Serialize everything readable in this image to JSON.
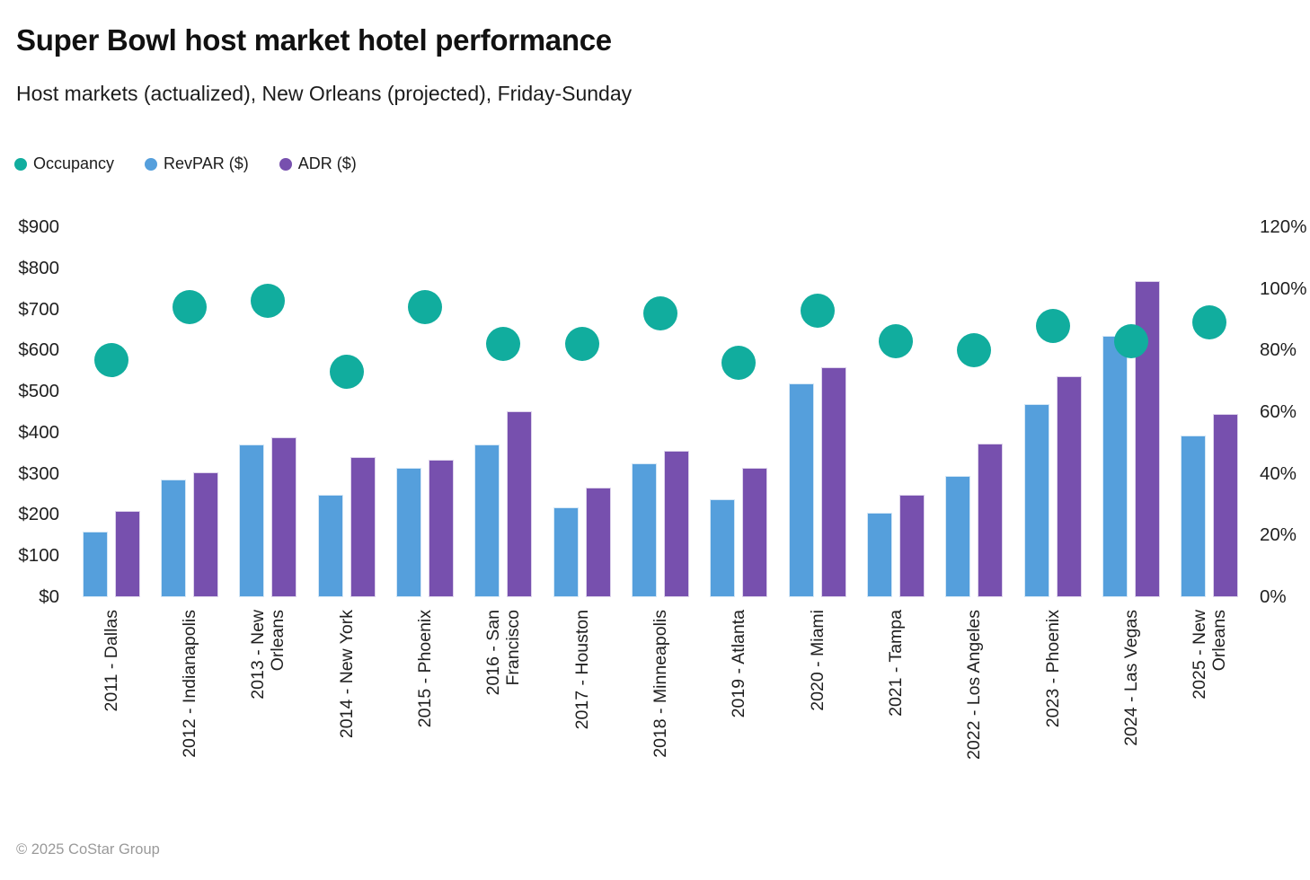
{
  "header": {
    "title": "Super Bowl host market hotel performance",
    "subtitle": "Host markets (actualized), New Orleans (projected), Friday-Sunday"
  },
  "legend": [
    {
      "label": "Occupancy",
      "color": "#11ad9e"
    },
    {
      "label": "RevPAR ($)",
      "color": "#559fdc"
    },
    {
      "label": "ADR ($)",
      "color": "#7750ae"
    }
  ],
  "footer": {
    "copyright": "© 2025 CoStar Group"
  },
  "chart_data": {
    "type": "combo",
    "title": "Super Bowl host market hotel performance",
    "subtitle": "Host markets (actualized), New Orleans (projected), Friday-Sunday",
    "grid": false,
    "legend_position": "top-left",
    "categories": [
      "2011 - Dallas",
      "2012 - Indianapolis",
      "2013 - New Orleans",
      "2014 - New York",
      "2015 - Phoenix",
      "2016 - San Francisco",
      "2017 - Houston",
      "2018 - Minneapolis",
      "2019 - Atlanta",
      "2020 - Miami",
      "2021 - Tampa",
      "2022 - Los Angeles",
      "2023 - Phoenix",
      "2024 - Las Vegas",
      "2025 - New Orleans"
    ],
    "category_lines": [
      [
        "2011 - Dallas"
      ],
      [
        "2012 - Indianapolis"
      ],
      [
        "2013 - New",
        "Orleans"
      ],
      [
        "2014 - New York"
      ],
      [
        "2015 - Phoenix"
      ],
      [
        "2016 - San",
        "Francisco"
      ],
      [
        "2017 - Houston"
      ],
      [
        "2018 - Minneapolis"
      ],
      [
        "2019 - Atlanta"
      ],
      [
        "2020 - Miami"
      ],
      [
        "2021 - Tampa"
      ],
      [
        "2022 - Los Angeles"
      ],
      [
        "2023 - Phoenix"
      ],
      [
        "2024 - Las Vegas"
      ],
      [
        "2025 - New",
        "Orleans"
      ]
    ],
    "series": [
      {
        "name": "Occupancy",
        "type": "scatter",
        "axis": "right",
        "unit": "%",
        "color": "#11ad9e",
        "values": [
          77,
          94,
          96,
          73,
          94,
          82,
          82,
          92,
          76,
          93,
          83,
          80,
          88,
          83,
          89
        ]
      },
      {
        "name": "RevPAR ($)",
        "type": "bar",
        "axis": "left",
        "unit": "$",
        "color": "#559fdc",
        "values": [
          160,
          287,
          371,
          248,
          314,
          371,
          219,
          326,
          238,
          520,
          205,
          296,
          470,
          636,
          394
        ]
      },
      {
        "name": "ADR ($)",
        "type": "bar",
        "axis": "left",
        "unit": "$",
        "color": "#7750ae",
        "values": [
          209,
          304,
          389,
          340,
          334,
          453,
          267,
          356,
          314,
          560,
          248,
          373,
          537,
          769,
          446
        ]
      }
    ],
    "left_axis": {
      "label": "",
      "min": 0,
      "max": 900,
      "tick_step": 100,
      "ticks": [
        "$0",
        "$100",
        "$200",
        "$300",
        "$400",
        "$500",
        "$600",
        "$700",
        "$800",
        "$900"
      ]
    },
    "right_axis": {
      "label": "",
      "min": 0,
      "max": 120,
      "tick_step": 20,
      "ticks": [
        "0%",
        "20%",
        "40%",
        "60%",
        "80%",
        "100%",
        "120%"
      ]
    }
  }
}
